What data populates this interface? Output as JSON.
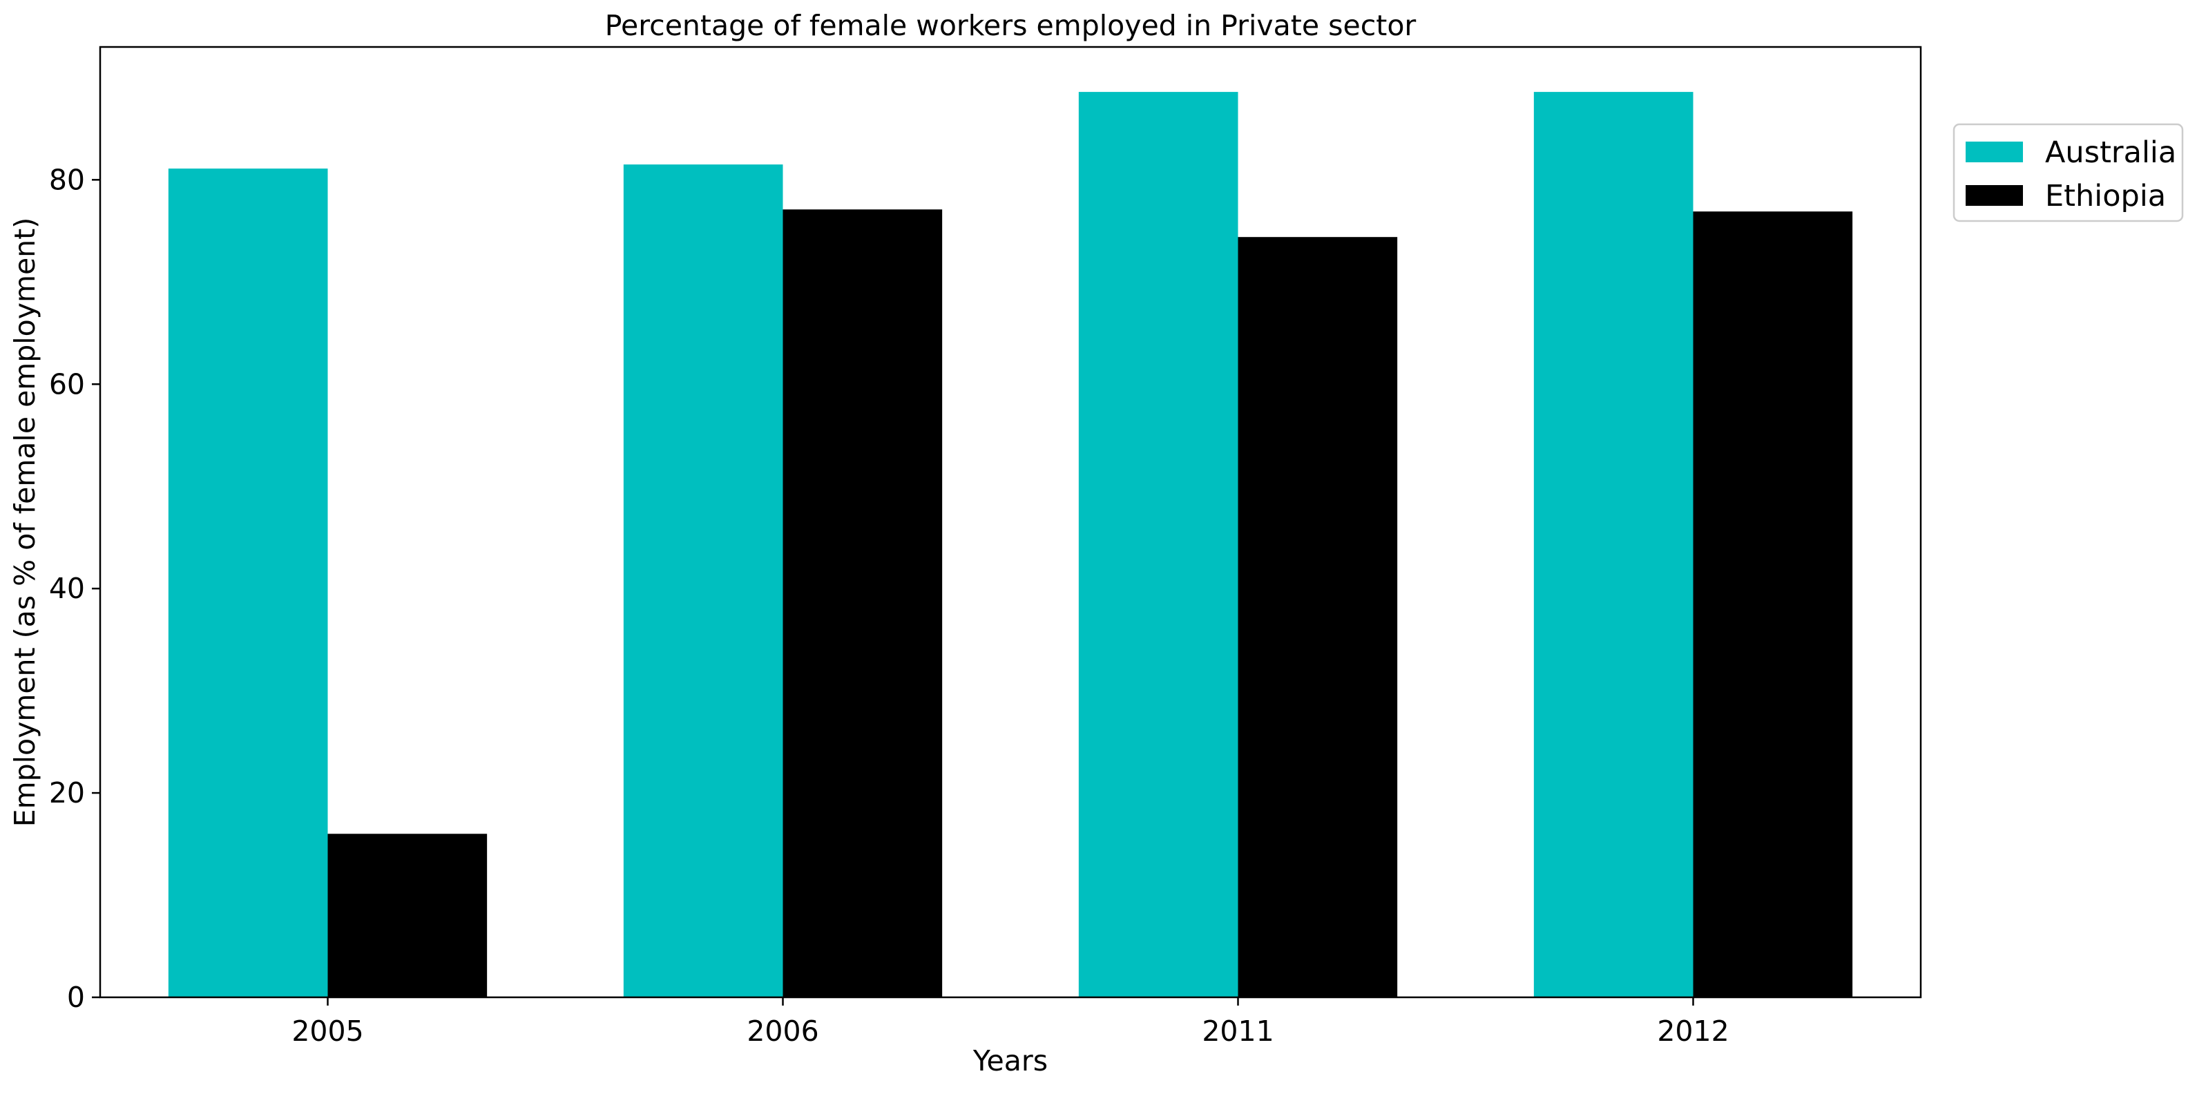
{
  "chart_data": {
    "type": "bar",
    "title": "Percentage of female workers employed in Private sector",
    "xlabel": "Years",
    "ylabel": "Employment (as % of female employment)",
    "categories": [
      "2005",
      "2006",
      "2011",
      "2012"
    ],
    "series": [
      {
        "name": "Australia",
        "color": "#00bfbf",
        "values": [
          81.1,
          81.5,
          88.6,
          88.6
        ]
      },
      {
        "name": "Ethiopia",
        "color": "#000000",
        "values": [
          16.0,
          77.1,
          74.4,
          76.9
        ]
      }
    ],
    "ylim": [
      0,
      93
    ],
    "yticks": [
      0,
      20,
      40,
      60,
      80
    ],
    "grid": false,
    "legend_position": "outside right, top"
  }
}
